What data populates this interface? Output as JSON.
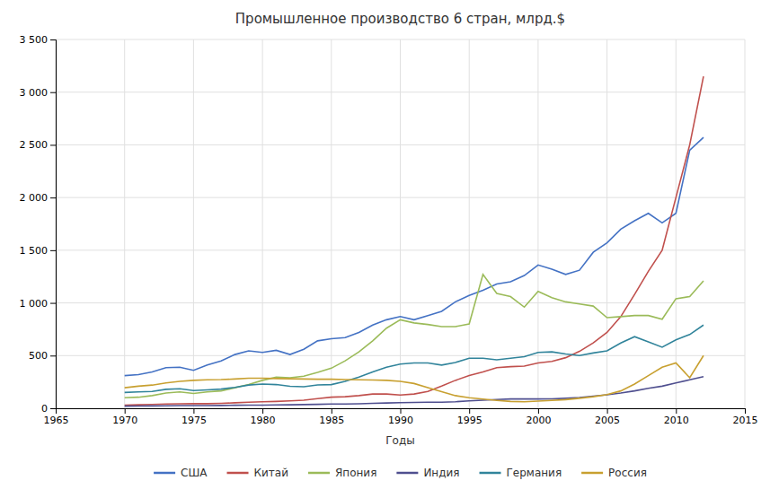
{
  "chart_data": {
    "type": "line",
    "title": "Промышленное производство 6 стран, млрд.$",
    "xlabel": "Годы",
    "xlim": [
      1965,
      2015
    ],
    "ylim": [
      0,
      3500
    ],
    "xticks": [
      1965,
      1970,
      1975,
      1980,
      1985,
      1990,
      1995,
      2000,
      2005,
      2010,
      2015
    ],
    "yticks": [
      0,
      500,
      {
        "value": 1000,
        "label": "1 000"
      },
      {
        "value": 1500,
        "label": "1 500"
      },
      {
        "value": 2000,
        "label": "2 000"
      },
      {
        "value": 2500,
        "label": "2 500"
      },
      {
        "value": 3000,
        "label": "3 000"
      },
      {
        "value": 3500,
        "label": "3 500"
      }
    ],
    "grid": true,
    "legend": "bottom",
    "x": [
      1970,
      1971,
      1972,
      1973,
      1974,
      1975,
      1976,
      1977,
      1978,
      1979,
      1980,
      1981,
      1982,
      1983,
      1984,
      1985,
      1986,
      1987,
      1988,
      1989,
      1990,
      1991,
      1992,
      1993,
      1994,
      1995,
      1996,
      1997,
      1998,
      1999,
      2000,
      2001,
      2002,
      2003,
      2004,
      2005,
      2006,
      2007,
      2008,
      2009,
      2010,
      2011,
      2012
    ],
    "series": [
      {
        "name": "США",
        "color": "#4472c4",
        "values": [
          310,
          320,
          345,
          385,
          390,
          360,
          410,
          450,
          510,
          545,
          530,
          550,
          510,
          560,
          640,
          660,
          670,
          720,
          790,
          840,
          870,
          840,
          880,
          920,
          1010,
          1070,
          1120,
          1180,
          1200,
          1260,
          1360,
          1320,
          1270,
          1310,
          1480,
          1570,
          1700,
          1780,
          1850,
          1760,
          1850,
          2450,
          2570
        ]
      },
      {
        "name": "Китай",
        "color": "#c0504d",
        "values": [
          30,
          33,
          36,
          40,
          42,
          44,
          44,
          47,
          52,
          57,
          62,
          65,
          70,
          77,
          92,
          105,
          110,
          120,
          135,
          135,
          125,
          135,
          160,
          210,
          265,
          310,
          345,
          385,
          395,
          400,
          430,
          445,
          480,
          540,
          620,
          720,
          870,
          1080,
          1300,
          1500,
          2000,
          2500,
          3150
        ]
      },
      {
        "name": "Япония",
        "color": "#9bbb59",
        "values": [
          100,
          105,
          120,
          145,
          155,
          140,
          155,
          165,
          195,
          225,
          265,
          295,
          290,
          305,
          340,
          380,
          450,
          535,
          640,
          760,
          840,
          810,
          795,
          775,
          775,
          800,
          1270,
          1090,
          1060,
          960,
          1110,
          1050,
          1010,
          990,
          970,
          860,
          870,
          880,
          880,
          845,
          1040,
          1060,
          1210
        ]
      },
      {
        "name": "Индия",
        "color": "#4f4f8f",
        "values": [
          20,
          21,
          22,
          24,
          25,
          25,
          26,
          27,
          29,
          30,
          30,
          32,
          33,
          35,
          37,
          40,
          41,
          43,
          47,
          50,
          53,
          55,
          57,
          57,
          62,
          70,
          77,
          83,
          88,
          88,
          88,
          90,
          95,
          102,
          115,
          128,
          145,
          165,
          190,
          210,
          240,
          270,
          300
        ]
      },
      {
        "name": "Германия",
        "color": "#31849b",
        "values": [
          150,
          155,
          160,
          180,
          185,
          168,
          175,
          182,
          198,
          220,
          230,
          225,
          208,
          205,
          222,
          225,
          255,
          295,
          345,
          390,
          420,
          430,
          430,
          410,
          435,
          475,
          475,
          460,
          475,
          490,
          530,
          535,
          515,
          500,
          525,
          545,
          620,
          680,
          630,
          580,
          650,
          700,
          790
        ]
      },
      {
        "name": "Россия",
        "color": "#c8a030",
        "values": [
          195,
          210,
          220,
          240,
          255,
          265,
          270,
          272,
          278,
          285,
          285,
          282,
          280,
          278,
          276,
          276,
          272,
          270,
          268,
          265,
          255,
          235,
          195,
          158,
          120,
          100,
          87,
          75,
          65,
          62,
          68,
          75,
          82,
          95,
          110,
          130,
          165,
          230,
          310,
          390,
          430,
          290,
          500
        ]
      }
    ]
  }
}
